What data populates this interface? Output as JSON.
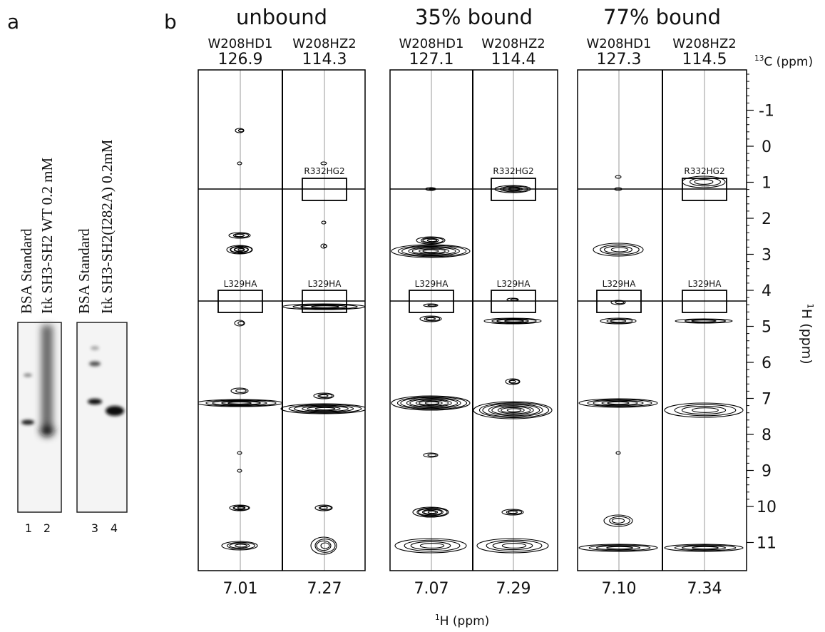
{
  "panel_a": {
    "label": "a",
    "lanes": [
      "BSA Standard",
      "Itk SH3-SH2 WT 0.2 mM",
      "BSA Standard",
      "Itk SH3-SH2(I282A) 0.2mM"
    ],
    "lane_numbers": [
      "1",
      "2",
      "3",
      "4"
    ]
  },
  "panel_b": {
    "label": "b",
    "groups": [
      {
        "title": "unbound",
        "strips": [
          {
            "name": "W208HD1",
            "carbon": "126.9",
            "proton": "7.01"
          },
          {
            "name": "W208HZ2",
            "carbon": "114.3",
            "proton": "7.27"
          }
        ]
      },
      {
        "title": "35% bound",
        "strips": [
          {
            "name": "W208HD1",
            "carbon": "127.1",
            "proton": "7.07"
          },
          {
            "name": "W208HZ2",
            "carbon": "114.4",
            "proton": "7.29"
          }
        ]
      },
      {
        "title": "77% bound",
        "strips": [
          {
            "name": "W208HD1",
            "carbon": "127.3",
            "proton": "7.10"
          },
          {
            "name": "W208HZ2",
            "carbon": "114.5",
            "proton": "7.34"
          }
        ]
      }
    ],
    "peak_labels": {
      "upper": "R332HG2",
      "lower": "L329HA"
    },
    "y_ticks": [
      "-1",
      "0",
      "1",
      "2",
      "3",
      "4",
      "5",
      "6",
      "7",
      "8",
      "9",
      "10",
      "11"
    ],
    "carbon_axis_label": {
      "sup": "13",
      "text": "C (ppm)"
    },
    "y_axis_label": {
      "sup": "1",
      "text": "H (ppm)"
    },
    "x_axis_label": {
      "sup": "1",
      "text": "H (ppm)"
    }
  }
}
